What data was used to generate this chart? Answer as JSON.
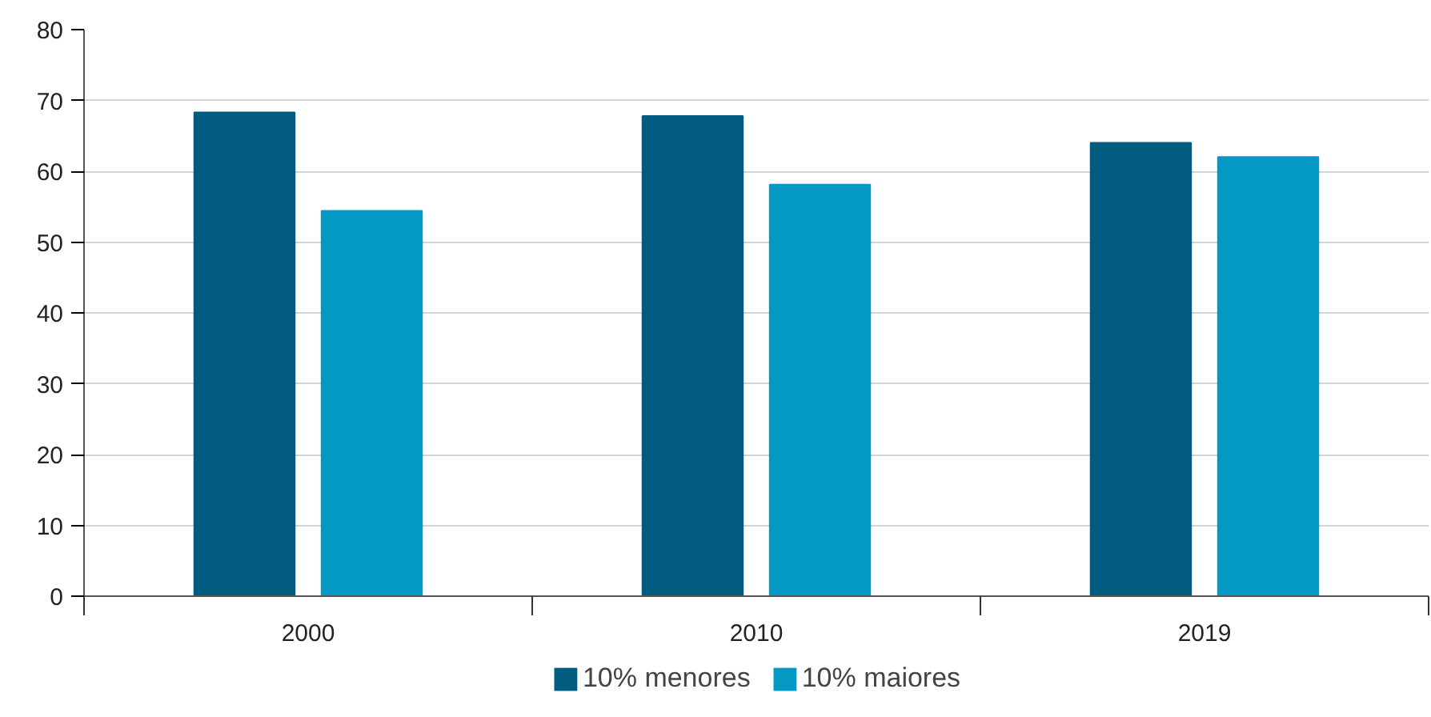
{
  "chart_data": {
    "type": "bar",
    "categories": [
      "2000",
      "2010",
      "2019"
    ],
    "series": [
      {
        "name": "10% menores",
        "color": "#025c80",
        "values": [
          68.3,
          67.8,
          64.0
        ]
      },
      {
        "name": "10% maiores",
        "color": "#0399c4",
        "values": [
          54.4,
          58.1,
          62.0
        ]
      }
    ],
    "ylim": [
      0,
      80
    ],
    "yticks": [
      0,
      10,
      20,
      30,
      40,
      50,
      60,
      70,
      80
    ],
    "grid": "y",
    "legend": "bottom"
  }
}
